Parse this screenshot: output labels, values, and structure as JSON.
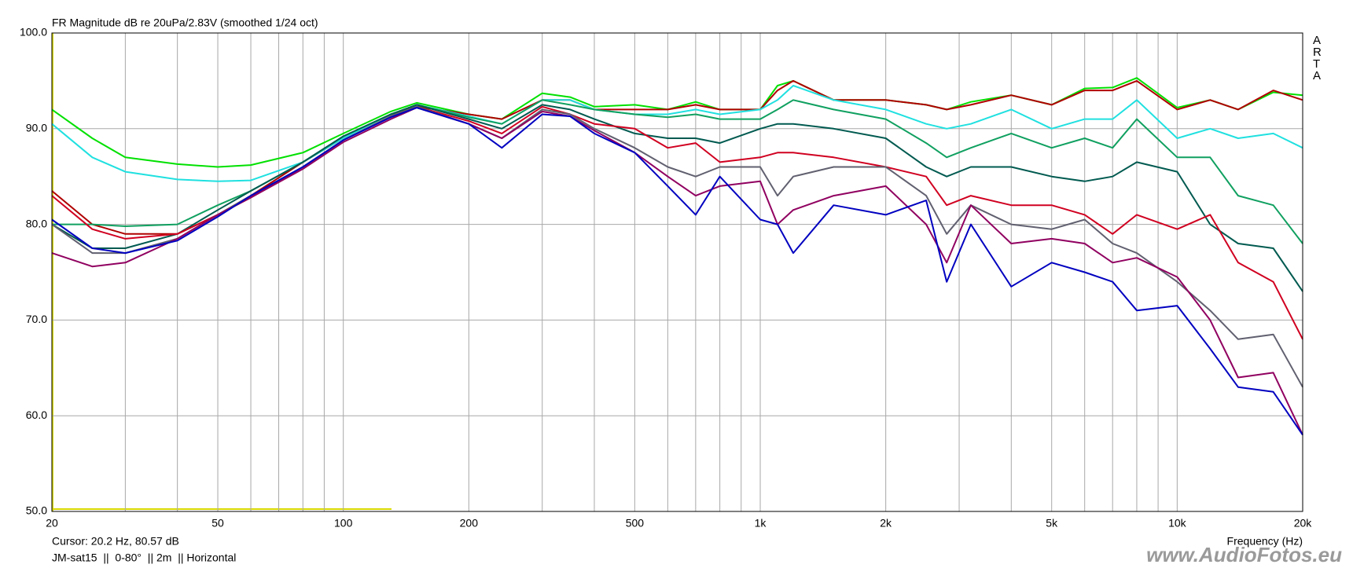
{
  "chart_data": {
    "type": "line",
    "title": "FR Magnitude dB re 20uPa/2.83V (smoothed 1/24 oct)",
    "x_label": "Frequency (Hz)",
    "cursor_text": "Cursor: 20.2 Hz, 80.57 dB",
    "info_text": "JM-sat15  ||  0-80°  || 2m  || Horizontal",
    "brand": "ARTA",
    "watermark": "www.AudioFotos.eu",
    "x_scale": "log",
    "grid": true,
    "xlim": [
      20,
      20000
    ],
    "xticks": [
      20,
      50,
      100,
      200,
      500,
      {
        "value": 1000,
        "label": "1k"
      },
      {
        "value": 2000,
        "label": "2k"
      },
      {
        "value": 5000,
        "label": "5k"
      },
      {
        "value": 10000,
        "label": "10k"
      },
      {
        "value": 20000,
        "label": "20k"
      }
    ],
    "xminor_ticks": [
      30,
      40,
      60,
      70,
      80,
      90,
      300,
      400,
      600,
      700,
      800,
      900,
      3000,
      4000,
      6000,
      7000,
      8000,
      9000
    ],
    "ylim": [
      50,
      100
    ],
    "yticks": [
      {
        "value": 50,
        "label": "50.0"
      },
      {
        "value": 60,
        "label": "60.0"
      },
      {
        "value": 70,
        "label": "70.0"
      },
      {
        "value": 80,
        "label": "80.0"
      },
      {
        "value": 90,
        "label": "90.0"
      },
      {
        "value": 100,
        "label": "100.0"
      }
    ],
    "x": [
      20,
      25,
      30,
      40,
      50,
      60,
      80,
      100,
      130,
      150,
      200,
      240,
      300,
      350,
      400,
      500,
      600,
      700,
      800,
      1000,
      1100,
      1200,
      1500,
      2000,
      2500,
      2800,
      3200,
      4000,
      5000,
      6000,
      7000,
      8000,
      10000,
      12000,
      14000,
      17000,
      20000
    ],
    "series": [
      {
        "color": "#00e000",
        "values": [
          92,
          89,
          87,
          86.3,
          86,
          86.2,
          87.5,
          89.5,
          91.8,
          92.7,
          91.5,
          91,
          93.7,
          93.3,
          92.3,
          92.5,
          92,
          92.8,
          92,
          92,
          94.5,
          95,
          93,
          93,
          92.5,
          92,
          92.8,
          93.5,
          92.5,
          94.2,
          94.3,
          95.3,
          92.2,
          93,
          92,
          93.8,
          93.5
        ]
      },
      {
        "color": "#b00000",
        "values": [
          83.5,
          80,
          79,
          79,
          81,
          83,
          86.5,
          89,
          91.5,
          92.3,
          91.5,
          91,
          93,
          93,
          92,
          92,
          92,
          92.5,
          92,
          92,
          94,
          95,
          93,
          93,
          92.5,
          92,
          92.5,
          93.5,
          92.5,
          94,
          94,
          95,
          92,
          93,
          92,
          94,
          93
        ]
      },
      {
        "color": "#20e0e0",
        "values": [
          90.5,
          87,
          85.5,
          84.7,
          84.5,
          84.6,
          86.5,
          89,
          91.5,
          92.5,
          91.3,
          90.5,
          93,
          93,
          92,
          91.5,
          91.5,
          92,
          91.5,
          92,
          93,
          94.5,
          93,
          92,
          90.5,
          90,
          90.5,
          92,
          90,
          91,
          91,
          93,
          89,
          90,
          89,
          89.5,
          88
        ]
      },
      {
        "color": "#10a060",
        "values": [
          80,
          80,
          79.8,
          80,
          82,
          83.5,
          86.5,
          89.2,
          91.5,
          92.5,
          91.2,
          90.5,
          93,
          92.5,
          92,
          91.5,
          91.2,
          91.5,
          91,
          91,
          92,
          93,
          92,
          91,
          88.5,
          87,
          88,
          89.5,
          88,
          89,
          88,
          91,
          87,
          87,
          83,
          82,
          78
        ]
      },
      {
        "color": "#005a50",
        "values": [
          80,
          77.5,
          77.5,
          79,
          81.5,
          83.5,
          86.5,
          89.2,
          91.5,
          92.5,
          91,
          90,
          92.5,
          92,
          91,
          89.5,
          89,
          89,
          88.5,
          90,
          90.5,
          90.5,
          90,
          89,
          86,
          85,
          86,
          86,
          85,
          84.5,
          85,
          86.5,
          85.5,
          80,
          78,
          77.5,
          73
        ]
      },
      {
        "color": "#d00020",
        "values": [
          83,
          79.5,
          78.5,
          79,
          81,
          82.8,
          86,
          88.8,
          91.3,
          92.3,
          90.8,
          89.5,
          92.3,
          91.5,
          90.5,
          90,
          88,
          88.5,
          86.5,
          87,
          87.5,
          87.5,
          87,
          86,
          85,
          82,
          83,
          82,
          82,
          81,
          79,
          81,
          79.5,
          81,
          76,
          74,
          68
        ]
      },
      {
        "color": "#606070",
        "values": [
          80,
          77,
          77,
          78.5,
          81,
          83,
          86,
          88.8,
          91.3,
          92.3,
          90.5,
          89,
          92,
          91.5,
          90,
          88,
          86,
          85,
          86,
          86,
          83,
          85,
          86,
          86,
          83,
          79,
          82,
          80,
          79.5,
          80.5,
          78,
          77,
          74,
          71,
          68,
          68.5,
          63
        ]
      },
      {
        "color": "#900060",
        "values": [
          77,
          75.6,
          76,
          78.5,
          81,
          82.8,
          85.8,
          88.6,
          91,
          92.2,
          90.5,
          89,
          91.8,
          91.3,
          89.8,
          87.5,
          85,
          83,
          84,
          84.5,
          80,
          81.5,
          83,
          84,
          80,
          76,
          82,
          78,
          78.5,
          78,
          76,
          76.5,
          74.5,
          70,
          64,
          64.5,
          58
        ]
      },
      {
        "color": "#0000c0",
        "values": [
          80.5,
          77.5,
          77,
          78.3,
          80.8,
          83,
          86,
          88.8,
          91.2,
          92.2,
          90.5,
          88,
          91.5,
          91.3,
          89.5,
          87.5,
          84,
          81,
          85,
          80.5,
          80,
          77,
          82,
          81,
          82.5,
          74,
          80,
          73.5,
          76,
          75,
          74,
          71,
          71.5,
          67,
          63,
          62.5,
          58
        ]
      }
    ]
  }
}
